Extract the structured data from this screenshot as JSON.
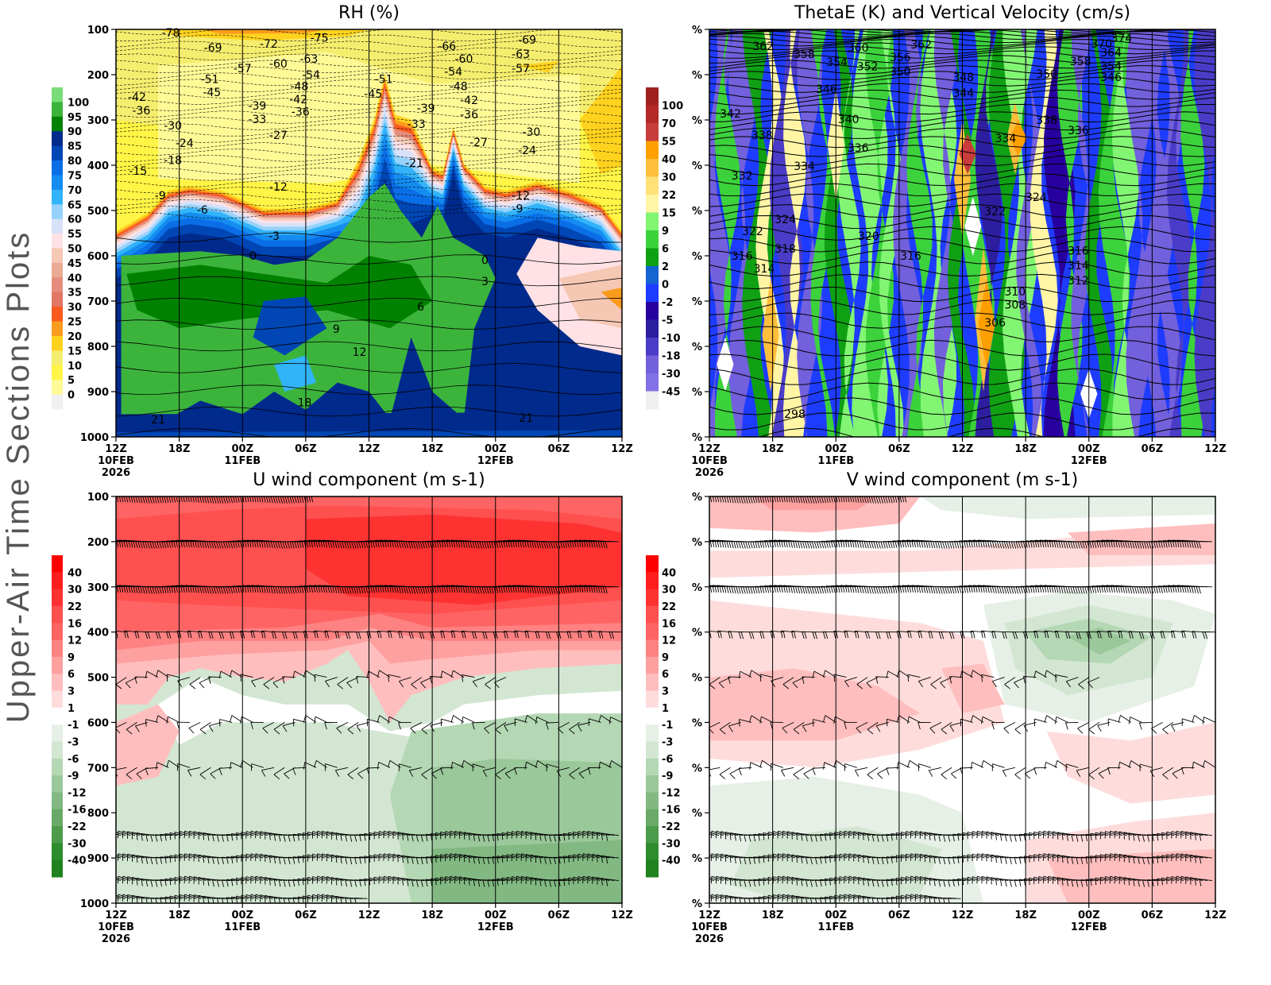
{
  "page_title": "Upper-Air Time Sections Plots",
  "chart_data": [
    {
      "type": "heatmap",
      "title": "RH (%)",
      "xlabel": "",
      "ylabel": "",
      "x_ticks": [
        "12Z",
        "18Z",
        "00Z",
        "06Z",
        "12Z",
        "18Z",
        "00Z",
        "06Z",
        "12Z"
      ],
      "x_sublabels": [
        {
          "i": 0,
          "l1": "10FEB",
          "l2": "2026"
        },
        {
          "i": 2,
          "l1": "11FEB",
          "l2": ""
        },
        {
          "i": 6,
          "l1": "12FEB",
          "l2": ""
        }
      ],
      "y_ticks": [
        "100",
        "200",
        "300",
        "400",
        "500",
        "600",
        "700",
        "800",
        "900",
        "1000"
      ],
      "xlim_hours": [
        0,
        48
      ],
      "ylim_hPa": [
        100,
        1000
      ],
      "colorbar": {
        "labels": [
          "100",
          "95",
          "90",
          "85",
          "80",
          "75",
          "70",
          "65",
          "60",
          "55",
          "50",
          "45",
          "40",
          "35",
          "30",
          "25",
          "20",
          "15",
          "10",
          "5",
          "0"
        ],
        "colors": [
          "#78dc78",
          "#3cb43c",
          "#008200",
          "#002a8c",
          "#0046b4",
          "#0a6ee6",
          "#148cf0",
          "#32b4fa",
          "#96d2fa",
          "#d7e1fa",
          "#ffe1e6",
          "#f5c8b4",
          "#ebaa94",
          "#e68c7d",
          "#e17664",
          "#fa5a1e",
          "#fa9b1e",
          "#ffd21e",
          "#f5ed6e",
          "#fff546",
          "#fffa96",
          "#f0f0f0"
        ]
      },
      "contour_labels": [
        {
          "v": "-78",
          "t": 5.2,
          "p": 107
        },
        {
          "v": "-69",
          "t": 9.2,
          "p": 140
        },
        {
          "v": "-72",
          "t": 14.5,
          "p": 132
        },
        {
          "v": "-75",
          "t": 19.3,
          "p": 118
        },
        {
          "v": "-57",
          "t": 12,
          "p": 186
        },
        {
          "v": "-60",
          "t": 15.4,
          "p": 175
        },
        {
          "v": "-63",
          "t": 18.3,
          "p": 165
        },
        {
          "v": "-51",
          "t": 8.9,
          "p": 210
        },
        {
          "v": "-45",
          "t": 9.1,
          "p": 239
        },
        {
          "v": "-54",
          "t": 18.5,
          "p": 200
        },
        {
          "v": "-48",
          "t": 17.4,
          "p": 225
        },
        {
          "v": "-42",
          "t": 2,
          "p": 249
        },
        {
          "v": "-36",
          "t": 2.4,
          "p": 279
        },
        {
          "v": "-39",
          "t": 13.4,
          "p": 268
        },
        {
          "v": "-33",
          "t": 13.4,
          "p": 298
        },
        {
          "v": "-42",
          "t": 17.3,
          "p": 254
        },
        {
          "v": "-36",
          "t": 17.5,
          "p": 282
        },
        {
          "v": "-30",
          "t": 5.4,
          "p": 312
        },
        {
          "v": "-27",
          "t": 15.4,
          "p": 333
        },
        {
          "v": "-24",
          "t": 6.5,
          "p": 351
        },
        {
          "v": "-18",
          "t": 5.4,
          "p": 389
        },
        {
          "v": "-15",
          "t": 2.1,
          "p": 412
        },
        {
          "v": "-9",
          "t": 4.2,
          "p": 467
        },
        {
          "v": "-6",
          "t": 8.2,
          "p": 498
        },
        {
          "v": "-12",
          "t": 15.4,
          "p": 447
        },
        {
          "v": "-3",
          "t": 15,
          "p": 556
        },
        {
          "v": "0",
          "t": 13,
          "p": 600
        },
        {
          "v": "-51",
          "t": 25.4,
          "p": 210
        },
        {
          "v": "-45",
          "t": 24.4,
          "p": 242
        },
        {
          "v": "-39",
          "t": 29.4,
          "p": 274
        },
        {
          "v": "-33",
          "t": 28.5,
          "p": 309
        },
        {
          "v": "-21",
          "t": 28.3,
          "p": 395
        },
        {
          "v": "-66",
          "t": 31.4,
          "p": 137
        },
        {
          "v": "-60",
          "t": 33,
          "p": 165
        },
        {
          "v": "-54",
          "t": 32,
          "p": 193
        },
        {
          "v": "-48",
          "t": 32.5,
          "p": 225
        },
        {
          "v": "-42",
          "t": 33.5,
          "p": 256
        },
        {
          "v": "-36",
          "t": 33.5,
          "p": 288
        },
        {
          "v": "-27",
          "t": 34.4,
          "p": 349
        },
        {
          "v": "-69",
          "t": 39,
          "p": 123
        },
        {
          "v": "-63",
          "t": 38.4,
          "p": 154
        },
        {
          "v": "-57",
          "t": 38.4,
          "p": 186
        },
        {
          "v": "-30",
          "t": 39.4,
          "p": 326
        },
        {
          "v": "-24",
          "t": 39,
          "p": 367
        },
        {
          "v": "-12",
          "t": 38.4,
          "p": 467
        },
        {
          "v": "-9",
          "t": 38.1,
          "p": 496
        },
        {
          "v": "0",
          "t": 35,
          "p": 610
        },
        {
          "v": "3",
          "t": 35,
          "p": 656
        },
        {
          "v": "6",
          "t": 28.9,
          "p": 712
        },
        {
          "v": "9",
          "t": 20.9,
          "p": 761
        },
        {
          "v": "12",
          "t": 23.1,
          "p": 812
        },
        {
          "v": "18",
          "t": 17.9,
          "p": 924
        },
        {
          "v": "21",
          "t": 4,
          "p": 961
        },
        {
          "v": "21",
          "t": 38.9,
          "p": 958
        }
      ]
    },
    {
      "type": "heatmap",
      "title": "ThetaE (K) and Vertical Velocity (cm/s)",
      "x_ticks": [
        "12Z",
        "18Z",
        "00Z",
        "06Z",
        "12Z",
        "18Z",
        "00Z",
        "06Z",
        "12Z"
      ],
      "x_sublabels": [
        {
          "i": 0,
          "l1": "10FEB",
          "l2": "2026"
        },
        {
          "i": 2,
          "l1": "11FEB",
          "l2": ""
        },
        {
          "i": 6,
          "l1": "12FEB",
          "l2": ""
        }
      ],
      "y_ticks": [
        "%",
        "%",
        "%",
        "%",
        "%",
        "%",
        "%",
        "%",
        "%",
        "%"
      ],
      "xlim_hours": [
        0,
        48
      ],
      "ylim_hPa": [
        100,
        1000
      ],
      "colorbar": {
        "labels": [
          "100",
          "70",
          "55",
          "40",
          "30",
          "22",
          "15",
          "9",
          "6",
          "2",
          "0",
          "-2",
          "-5",
          "-10",
          "-18",
          "-30",
          "-45"
        ],
        "colors": [
          "#a02020",
          "#b42828",
          "#c83c3c",
          "#ffa000",
          "#ffbe3c",
          "#ffe178",
          "#fff5a5",
          "#82f573",
          "#3cd23c",
          "#0fa014",
          "#1464d2",
          "#1e3cff",
          "#2800a0",
          "#2d1ea0",
          "#4b3cc8",
          "#7260dc",
          "#8270e6",
          "#f0f0f0"
        ]
      },
      "contour_labels": [
        {
          "v": "362",
          "t": 5.1,
          "p": 137
        },
        {
          "v": "358",
          "t": 9,
          "p": 154
        },
        {
          "v": "360",
          "t": 14.1,
          "p": 140
        },
        {
          "v": "354",
          "t": 12.1,
          "p": 172
        },
        {
          "v": "352",
          "t": 15,
          "p": 182
        },
        {
          "v": "356",
          "t": 18.1,
          "p": 161
        },
        {
          "v": "350",
          "t": 18.1,
          "p": 193
        },
        {
          "v": "362",
          "t": 20.1,
          "p": 133
        },
        {
          "v": "348",
          "t": 24.1,
          "p": 205
        },
        {
          "v": "344",
          "t": 24.1,
          "p": 240
        },
        {
          "v": "346",
          "t": 11.1,
          "p": 232
        },
        {
          "v": "370",
          "t": 37.2,
          "p": 132
        },
        {
          "v": "374",
          "t": 39.1,
          "p": 119
        },
        {
          "v": "364",
          "t": 38.1,
          "p": 151
        },
        {
          "v": "358",
          "t": 35.2,
          "p": 170
        },
        {
          "v": "354",
          "t": 38.1,
          "p": 181
        },
        {
          "v": "350",
          "t": 32,
          "p": 198
        },
        {
          "v": "346",
          "t": 38.1,
          "p": 205
        },
        {
          "v": "342",
          "t": 2,
          "p": 286
        },
        {
          "v": "338",
          "t": 5,
          "p": 333
        },
        {
          "v": "340",
          "t": 13.2,
          "p": 298
        },
        {
          "v": "336",
          "t": 14.1,
          "p": 361
        },
        {
          "v": "334",
          "t": 9,
          "p": 402
        },
        {
          "v": "332",
          "t": 3.1,
          "p": 423
        },
        {
          "v": "338",
          "t": 32,
          "p": 300
        },
        {
          "v": "336",
          "t": 35,
          "p": 323
        },
        {
          "v": "334",
          "t": 28.1,
          "p": 340
        },
        {
          "v": "324",
          "t": 31,
          "p": 470
        },
        {
          "v": "322",
          "t": 27.1,
          "p": 502
        },
        {
          "v": "324",
          "t": 7.2,
          "p": 519
        },
        {
          "v": "322",
          "t": 4.1,
          "p": 546
        },
        {
          "v": "320",
          "t": 15.1,
          "p": 556
        },
        {
          "v": "318",
          "t": 7.2,
          "p": 584
        },
        {
          "v": "316",
          "t": 3.1,
          "p": 600
        },
        {
          "v": "316",
          "t": 19.1,
          "p": 600
        },
        {
          "v": "314",
          "t": 5.2,
          "p": 628
        },
        {
          "v": "316",
          "t": 35,
          "p": 589
        },
        {
          "v": "314",
          "t": 35,
          "p": 621
        },
        {
          "v": "312",
          "t": 35,
          "p": 654
        },
        {
          "v": "310",
          "t": 29,
          "p": 679
        },
        {
          "v": "308",
          "t": 29,
          "p": 708
        },
        {
          "v": "306",
          "t": 27.1,
          "p": 747
        },
        {
          "v": "298",
          "t": 8.1,
          "p": 949
        }
      ]
    },
    {
      "type": "heatmap",
      "title": "U wind component (m s-1)",
      "x_ticks": [
        "12Z",
        "18Z",
        "00Z",
        "06Z",
        "12Z",
        "18Z",
        "00Z",
        "06Z",
        "12Z"
      ],
      "x_sublabels": [
        {
          "i": 0,
          "l1": "10FEB",
          "l2": "2026"
        },
        {
          "i": 2,
          "l1": "11FEB",
          "l2": ""
        },
        {
          "i": 6,
          "l1": "12FEB",
          "l2": ""
        }
      ],
      "y_ticks": [
        "100",
        "200",
        "300",
        "400",
        "500",
        "600",
        "700",
        "800",
        "900",
        "1000"
      ],
      "xlim_hours": [
        0,
        48
      ],
      "ylim_hPa": [
        100,
        1000
      ],
      "colorbar": {
        "labels": [
          "40",
          "30",
          "22",
          "16",
          "12",
          "9",
          "6",
          "3",
          "1",
          "-1",
          "-3",
          "-6",
          "-9",
          "-12",
          "-16",
          "-22",
          "-30",
          "-40"
        ],
        "colors": [
          "#ff0000",
          "#ff1e1e",
          "#ff3232",
          "#ff5050",
          "#ff6464",
          "#ff8282",
          "#ffa0a0",
          "#ffbebe",
          "#ffdcdc",
          "#ffffff",
          "#e6f0e6",
          "#d2e6d2",
          "#b4d7b4",
          "#9bc89b",
          "#82b982",
          "#69aa69",
          "#4b9b4b",
          "#2d8c2d",
          "#1e821e"
        ]
      },
      "contour_labels": []
    },
    {
      "type": "heatmap",
      "title": "V wind component (m s-1)",
      "x_ticks": [
        "12Z",
        "18Z",
        "00Z",
        "06Z",
        "12Z",
        "18Z",
        "00Z",
        "06Z",
        "12Z"
      ],
      "x_sublabels": [
        {
          "i": 0,
          "l1": "10FEB",
          "l2": "2026"
        },
        {
          "i": 2,
          "l1": "11FEB",
          "l2": ""
        },
        {
          "i": 6,
          "l1": "12FEB",
          "l2": ""
        }
      ],
      "y_ticks": [
        "%",
        "%",
        "%",
        "%",
        "%",
        "%",
        "%",
        "%",
        "%",
        "%"
      ],
      "xlim_hours": [
        0,
        48
      ],
      "ylim_hPa": [
        100,
        1000
      ],
      "colorbar": {
        "labels": [
          "40",
          "30",
          "22",
          "16",
          "12",
          "9",
          "6",
          "3",
          "1",
          "-1",
          "-3",
          "-6",
          "-9",
          "-12",
          "-16",
          "-22",
          "-30",
          "-40"
        ],
        "colors": [
          "#ff0000",
          "#ff1e1e",
          "#ff3232",
          "#ff5050",
          "#ff6464",
          "#ff8282",
          "#ffa0a0",
          "#ffbebe",
          "#ffdcdc",
          "#ffffff",
          "#e6f0e6",
          "#d2e6d2",
          "#b4d7b4",
          "#9bc89b",
          "#82b982",
          "#69aa69",
          "#4b9b4b",
          "#2d8c2d",
          "#1e821e"
        ]
      },
      "contour_labels": []
    }
  ]
}
